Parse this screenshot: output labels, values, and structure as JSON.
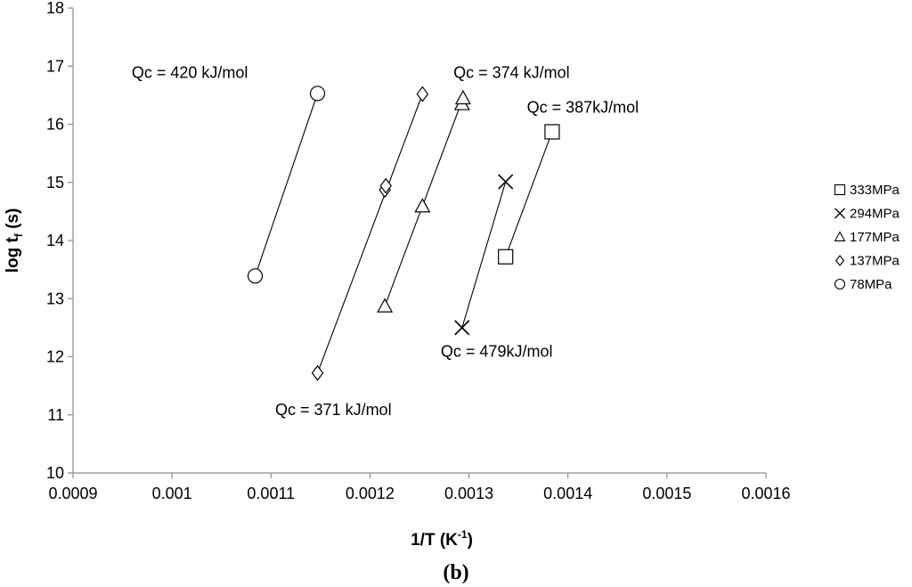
{
  "chart_data": {
    "type": "scatter",
    "xlabel_main": "1/T (K",
    "xlabel_sup": "-1",
    "xlabel_end": ")",
    "ylabel_main": "log t",
    "ylabel_sub": "f",
    "ylabel_end": " (s)",
    "panel_label": "(b)",
    "xlim": [
      0.0009,
      0.0016
    ],
    "ylim": [
      10,
      18
    ],
    "xticks": [
      "0.0009",
      "0.001",
      "0.0011",
      "0.0012",
      "0.0013",
      "0.0014",
      "0.0015",
      "0.0016"
    ],
    "yticks": [
      "10",
      "11",
      "12",
      "13",
      "14",
      "15",
      "16",
      "17",
      "18"
    ],
    "legend_position": "right",
    "series": [
      {
        "name": "333MPa",
        "marker": "square",
        "points": [
          [
            0.001337,
            13.72
          ],
          [
            0.001384,
            15.87
          ]
        ]
      },
      {
        "name": "294MPa",
        "marker": "x",
        "points": [
          [
            0.001293,
            12.5
          ],
          [
            0.001337,
            15.01
          ]
        ]
      },
      {
        "name": "177MPa",
        "marker": "triangle",
        "points": [
          [
            0.001215,
            12.87
          ],
          [
            0.001253,
            14.59
          ],
          [
            0.001293,
            16.35
          ],
          [
            0.001294,
            16.45
          ]
        ]
      },
      {
        "name": "137MPa",
        "marker": "diamond",
        "points": [
          [
            0.001147,
            11.72
          ],
          [
            0.001215,
            14.87
          ],
          [
            0.001216,
            14.94
          ],
          [
            0.001253,
            16.52
          ]
        ]
      },
      {
        "name": "78MPa",
        "marker": "circle",
        "points": [
          [
            0.001084,
            13.39
          ],
          [
            0.001147,
            16.53
          ]
        ]
      }
    ],
    "annotations": [
      {
        "text": "Qc = 420 kJ/mol",
        "x": 0.001018,
        "y": 16.8
      },
      {
        "text": "Qc = 374 kJ/mol",
        "x": 0.001343,
        "y": 16.8
      },
      {
        "text": "Qc = 387kJ/mol",
        "x": 0.001415,
        "y": 16.2
      },
      {
        "text": "Qc = 479kJ/mol",
        "x": 0.001328,
        "y": 12.0
      },
      {
        "text": "Qc = 371 kJ/mol",
        "x": 0.001163,
        "y": 11.0
      }
    ]
  }
}
